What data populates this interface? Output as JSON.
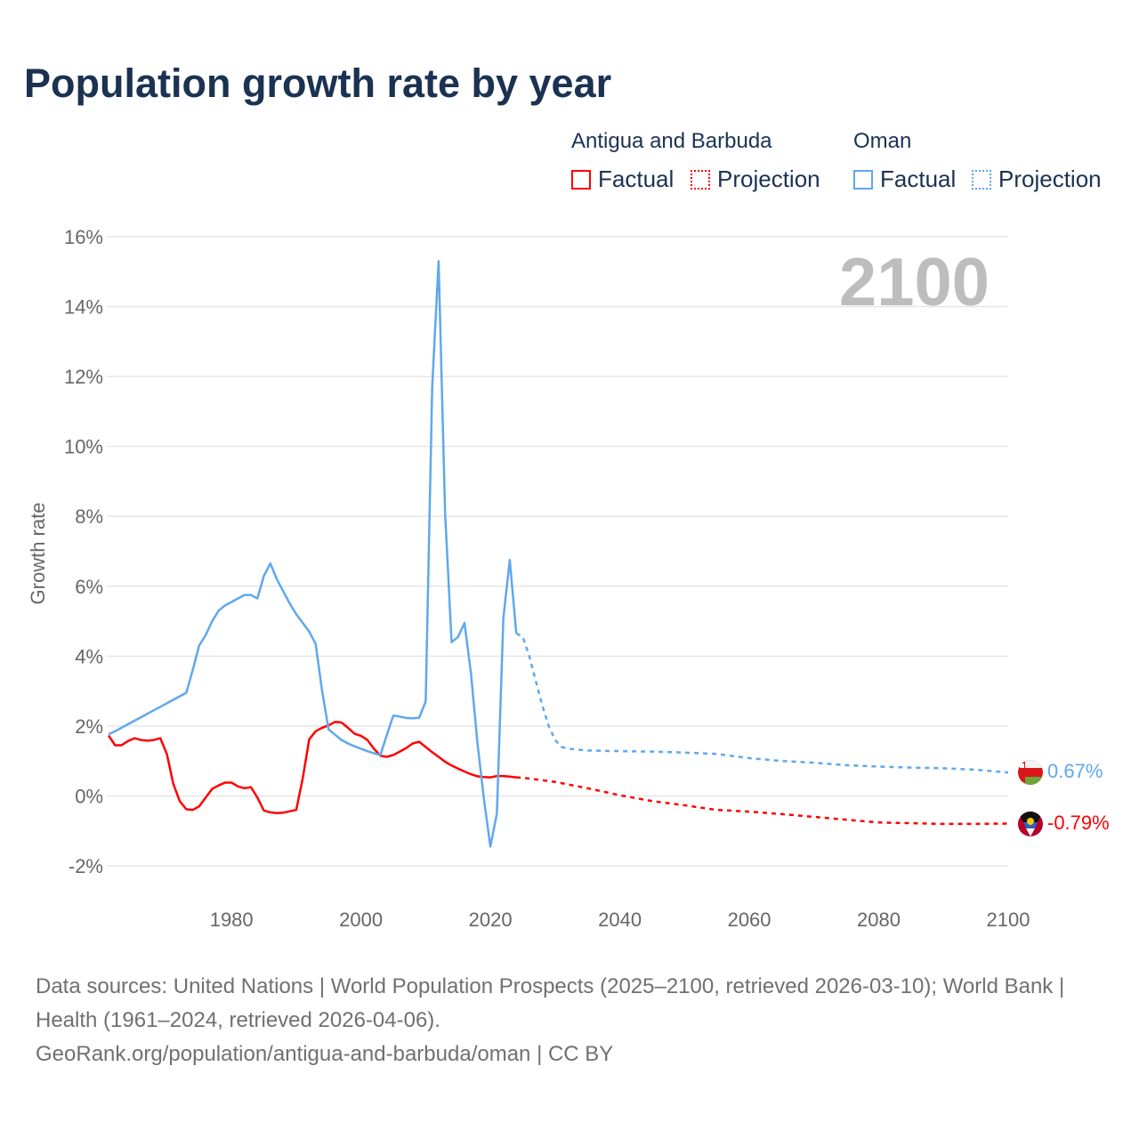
{
  "title": "Population growth rate by year",
  "legend": {
    "groups": [
      {
        "name": "Antigua and Barbuda",
        "factual": "Factual",
        "projection": "Projection",
        "color": "#ff0000"
      },
      {
        "name": "Oman",
        "factual": "Factual",
        "projection": "Projection",
        "color": "#5fa8ee"
      }
    ]
  },
  "footer": {
    "sources": "Data sources: United Nations | World Population Prospects (2025–2100, retrieved 2026-03-10); World Bank | Health (1961–2024, retrieved 2026-04-06).",
    "credit": "GeoRank.org/population/antigua-and-barbuda/oman | CC BY"
  },
  "chart_data": {
    "type": "line",
    "title": "Population growth rate by year",
    "xlabel": "",
    "ylabel": "Growth rate",
    "current_year_label": "2100",
    "xlim": [
      1961,
      2100
    ],
    "ylim": [
      -2,
      16
    ],
    "x_ticks": [
      1980,
      2000,
      2020,
      2040,
      2060,
      2080,
      2100
    ],
    "y_ticks": [
      -2,
      0,
      2,
      4,
      6,
      8,
      10,
      12,
      14,
      16
    ],
    "y_tick_labels": [
      "-2%",
      "0%",
      "2%",
      "4%",
      "6%",
      "8%",
      "10%",
      "12%",
      "14%",
      "16%"
    ],
    "grid": true,
    "legend_position": "top-right",
    "series": [
      {
        "name": "Antigua and Barbuda",
        "color": "#ff0000",
        "end_label": "-0.79%",
        "factual": {
          "x": [
            1961,
            1962,
            1963,
            1964,
            1965,
            1966,
            1967,
            1968,
            1969,
            1970,
            1971,
            1972,
            1973,
            1974,
            1975,
            1976,
            1977,
            1978,
            1979,
            1980,
            1981,
            1982,
            1983,
            1984,
            1985,
            1986,
            1987,
            1988,
            1989,
            1990,
            1991,
            1992,
            1993,
            1994,
            1995,
            1996,
            1997,
            1998,
            1999,
            2000,
            2001,
            2002,
            2003,
            2004,
            2005,
            2006,
            2007,
            2008,
            2009,
            2010,
            2011,
            2012,
            2013,
            2014,
            2015,
            2016,
            2017,
            2018,
            2019,
            2020,
            2021,
            2022,
            2023,
            2024
          ],
          "y": [
            1.73,
            1.45,
            1.45,
            1.57,
            1.65,
            1.6,
            1.58,
            1.6,
            1.65,
            1.2,
            0.35,
            -0.15,
            -0.38,
            -0.4,
            -0.3,
            -0.05,
            0.2,
            0.3,
            0.38,
            0.38,
            0.27,
            0.22,
            0.25,
            -0.05,
            -0.42,
            -0.47,
            -0.49,
            -0.48,
            -0.44,
            -0.4,
            0.5,
            1.62,
            1.85,
            1.95,
            2.02,
            2.12,
            2.1,
            1.95,
            1.78,
            1.72,
            1.6,
            1.35,
            1.15,
            1.12,
            1.17,
            1.27,
            1.37,
            1.5,
            1.55,
            1.4,
            1.25,
            1.12,
            0.98,
            0.87,
            0.78,
            0.7,
            0.62,
            0.56,
            0.54,
            0.53,
            0.57,
            0.57,
            0.55,
            0.53
          ]
        },
        "projection": {
          "x": [
            2024,
            2025,
            2030,
            2035,
            2040,
            2045,
            2050,
            2055,
            2060,
            2065,
            2070,
            2075,
            2080,
            2085,
            2090,
            2095,
            2100
          ],
          "y": [
            0.53,
            0.52,
            0.4,
            0.22,
            0.02,
            -0.15,
            -0.27,
            -0.4,
            -0.45,
            -0.52,
            -0.6,
            -0.68,
            -0.76,
            -0.78,
            -0.8,
            -0.8,
            -0.79
          ]
        }
      },
      {
        "name": "Oman",
        "color": "#5fa8ee",
        "end_label": "0.67%",
        "factual": {
          "x": [
            1961,
            1962,
            1963,
            1964,
            1965,
            1966,
            1967,
            1968,
            1969,
            1970,
            1971,
            1972,
            1973,
            1974,
            1975,
            1976,
            1977,
            1978,
            1979,
            1980,
            1981,
            1982,
            1983,
            1984,
            1985,
            1986,
            1987,
            1988,
            1989,
            1990,
            1991,
            1992,
            1993,
            1994,
            1995,
            1996,
            1997,
            1998,
            1999,
            2000,
            2001,
            2002,
            2003,
            2004,
            2005,
            2006,
            2007,
            2008,
            2009,
            2010,
            2011,
            2012,
            2013,
            2014,
            2015,
            2016,
            2017,
            2018,
            2019,
            2020,
            2021,
            2022,
            2023,
            2024
          ],
          "y": [
            1.76,
            1.85,
            1.95,
            2.05,
            2.15,
            2.25,
            2.35,
            2.45,
            2.55,
            2.65,
            2.75,
            2.85,
            2.95,
            3.6,
            4.3,
            4.6,
            5.0,
            5.3,
            5.45,
            5.55,
            5.65,
            5.75,
            5.75,
            5.65,
            6.3,
            6.65,
            6.2,
            5.85,
            5.5,
            5.2,
            4.95,
            4.7,
            4.35,
            3.0,
            1.9,
            1.75,
            1.6,
            1.5,
            1.42,
            1.35,
            1.28,
            1.22,
            1.17,
            1.75,
            2.3,
            2.27,
            2.23,
            2.22,
            2.24,
            2.7,
            11.7,
            15.3,
            8.1,
            4.4,
            4.55,
            4.95,
            3.5,
            1.5,
            -0.1,
            -1.45,
            -0.5,
            5.1,
            6.75,
            4.65
          ]
        },
        "projection": {
          "x": [
            2024,
            2025,
            2026,
            2027,
            2028,
            2029,
            2030,
            2031,
            2032,
            2035,
            2040,
            2045,
            2050,
            2055,
            2060,
            2065,
            2070,
            2075,
            2080,
            2085,
            2090,
            2095,
            2100
          ],
          "y": [
            4.65,
            4.55,
            4.0,
            3.3,
            2.6,
            2.0,
            1.6,
            1.4,
            1.35,
            1.3,
            1.28,
            1.27,
            1.24,
            1.2,
            1.08,
            1.0,
            0.95,
            0.88,
            0.84,
            0.81,
            0.79,
            0.75,
            0.67
          ]
        }
      }
    ]
  }
}
